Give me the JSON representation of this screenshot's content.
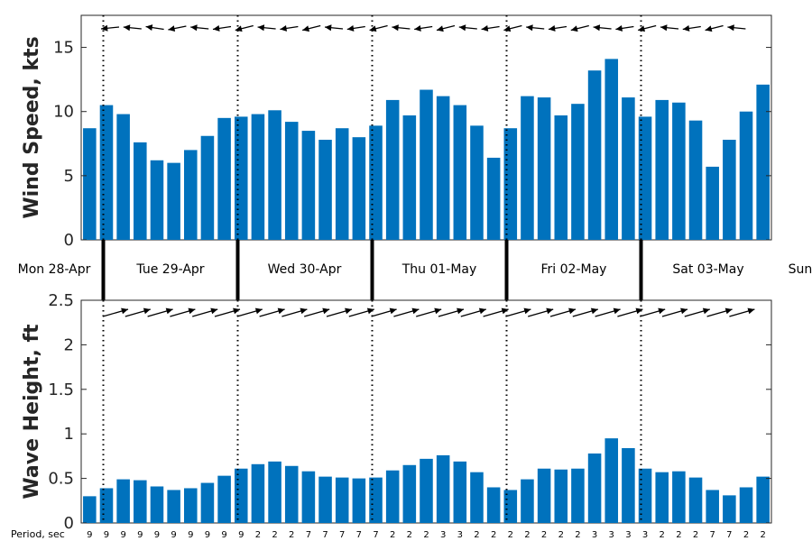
{
  "chart_data": [
    {
      "type": "bar",
      "name": "wind",
      "ylabel": "Wind Speed, kts",
      "ylim": [
        0,
        17.5
      ],
      "yticks": [
        "0",
        "5",
        "10",
        "15"
      ],
      "values": [
        8.7,
        10.5,
        9.8,
        7.6,
        6.2,
        6.0,
        7.0,
        8.1,
        9.5,
        9.6,
        9.8,
        10.1,
        9.2,
        8.5,
        7.8,
        8.7,
        8.0,
        8.9,
        10.9,
        9.7,
        11.7,
        11.2,
        10.5,
        8.9,
        6.4,
        8.7,
        11.2,
        11.1,
        9.7,
        10.6,
        13.2,
        14.1,
        11.1,
        9.6,
        10.9,
        10.7,
        9.3,
        5.7,
        7.8,
        10.0,
        12.1
      ],
      "direction_arrows": "wind-from arrows per 3-hour slot",
      "bar_color": "#0072BD"
    },
    {
      "type": "bar",
      "name": "wave",
      "ylabel": "Wave Height, ft",
      "ylim": [
        0,
        2.5
      ],
      "yticks": [
        "0",
        "0.5",
        "1",
        "1.5",
        "2",
        "2.5"
      ],
      "values": [
        0.3,
        0.39,
        0.49,
        0.48,
        0.41,
        0.37,
        0.39,
        0.45,
        0.53,
        0.61,
        0.66,
        0.69,
        0.64,
        0.58,
        0.52,
        0.51,
        0.5,
        0.51,
        0.59,
        0.65,
        0.72,
        0.76,
        0.69,
        0.57,
        0.4,
        0.37,
        0.49,
        0.61,
        0.6,
        0.61,
        0.78,
        0.95,
        0.84,
        0.61,
        0.57,
        0.58,
        0.51,
        0.37,
        0.31,
        0.4,
        0.52
      ],
      "period_title": "Period, sec",
      "periods": [
        "9",
        "9",
        "9",
        "9",
        "9",
        "9",
        "9",
        "9",
        "9",
        "9",
        "2",
        "2",
        "2",
        "7",
        "7",
        "7",
        "7",
        "7",
        "2",
        "2",
        "2",
        "3",
        "3",
        "2",
        "2",
        "2",
        "2",
        "2",
        "2",
        "2",
        "3",
        "3",
        "3",
        "3",
        "2",
        "2",
        "2",
        "7",
        "7",
        "2",
        "2"
      ],
      "bar_color": "#0072BD"
    }
  ],
  "days": [
    "Mon 28-Apr",
    "Tue 29-Apr",
    "Wed 30-Apr",
    "Thu 01-May",
    "Fri 02-May",
    "Sat 03-May",
    "Sun"
  ]
}
